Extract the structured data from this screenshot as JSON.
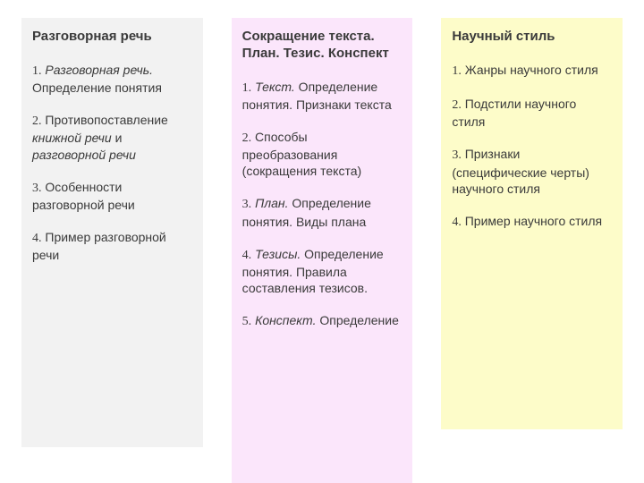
{
  "columns": [
    {
      "bg": "#f2f2f2",
      "title": "Разговорная речь",
      "items": [
        {
          "num": "1.",
          "italic": "Разговорная речь.",
          "rest": " Определение понятия"
        },
        {
          "num": "2.",
          "pre": " Противопоставление ",
          "italic": "книжной речи",
          "mid": " и ",
          "italic2": "разговорной речи",
          "rest": ""
        },
        {
          "num": "3.",
          "rest": " Особенности разговорной речи"
        },
        {
          "num": "4.",
          "rest": " Пример разговорной речи"
        }
      ]
    },
    {
      "bg": "#fbe6fb",
      "title": "Сокращение текста. План. Тезис. Конспект",
      "items": [
        {
          "num": "1.",
          "italic": "Текст.",
          "rest": " Определение понятия. Признаки текста"
        },
        {
          "num": "2.",
          "rest": " Способы преобразования (сокращения текста)"
        },
        {
          "num": "3.",
          "italic": "План.",
          "rest": " Определение понятия. Виды плана"
        },
        {
          "num": "4.",
          "italic": "Тезисы.",
          "rest": " Определение понятия. Правила составления тезисов."
        },
        {
          "num": "5.",
          "italic": "Конспект.",
          "rest": " Определение"
        }
      ]
    },
    {
      "bg": "#fdfcc9",
      "title": "Научный стиль",
      "items": [
        {
          "num": "1.",
          "rest": " Жанры научного стиля"
        },
        {
          "num": "2.",
          "rest": " Подстили научного стиля"
        },
        {
          "num": "3.",
          "rest": " Признаки (специфические черты) научного стиля"
        },
        {
          "num": "4.",
          "rest": " Пример научного стиля"
        }
      ]
    }
  ]
}
